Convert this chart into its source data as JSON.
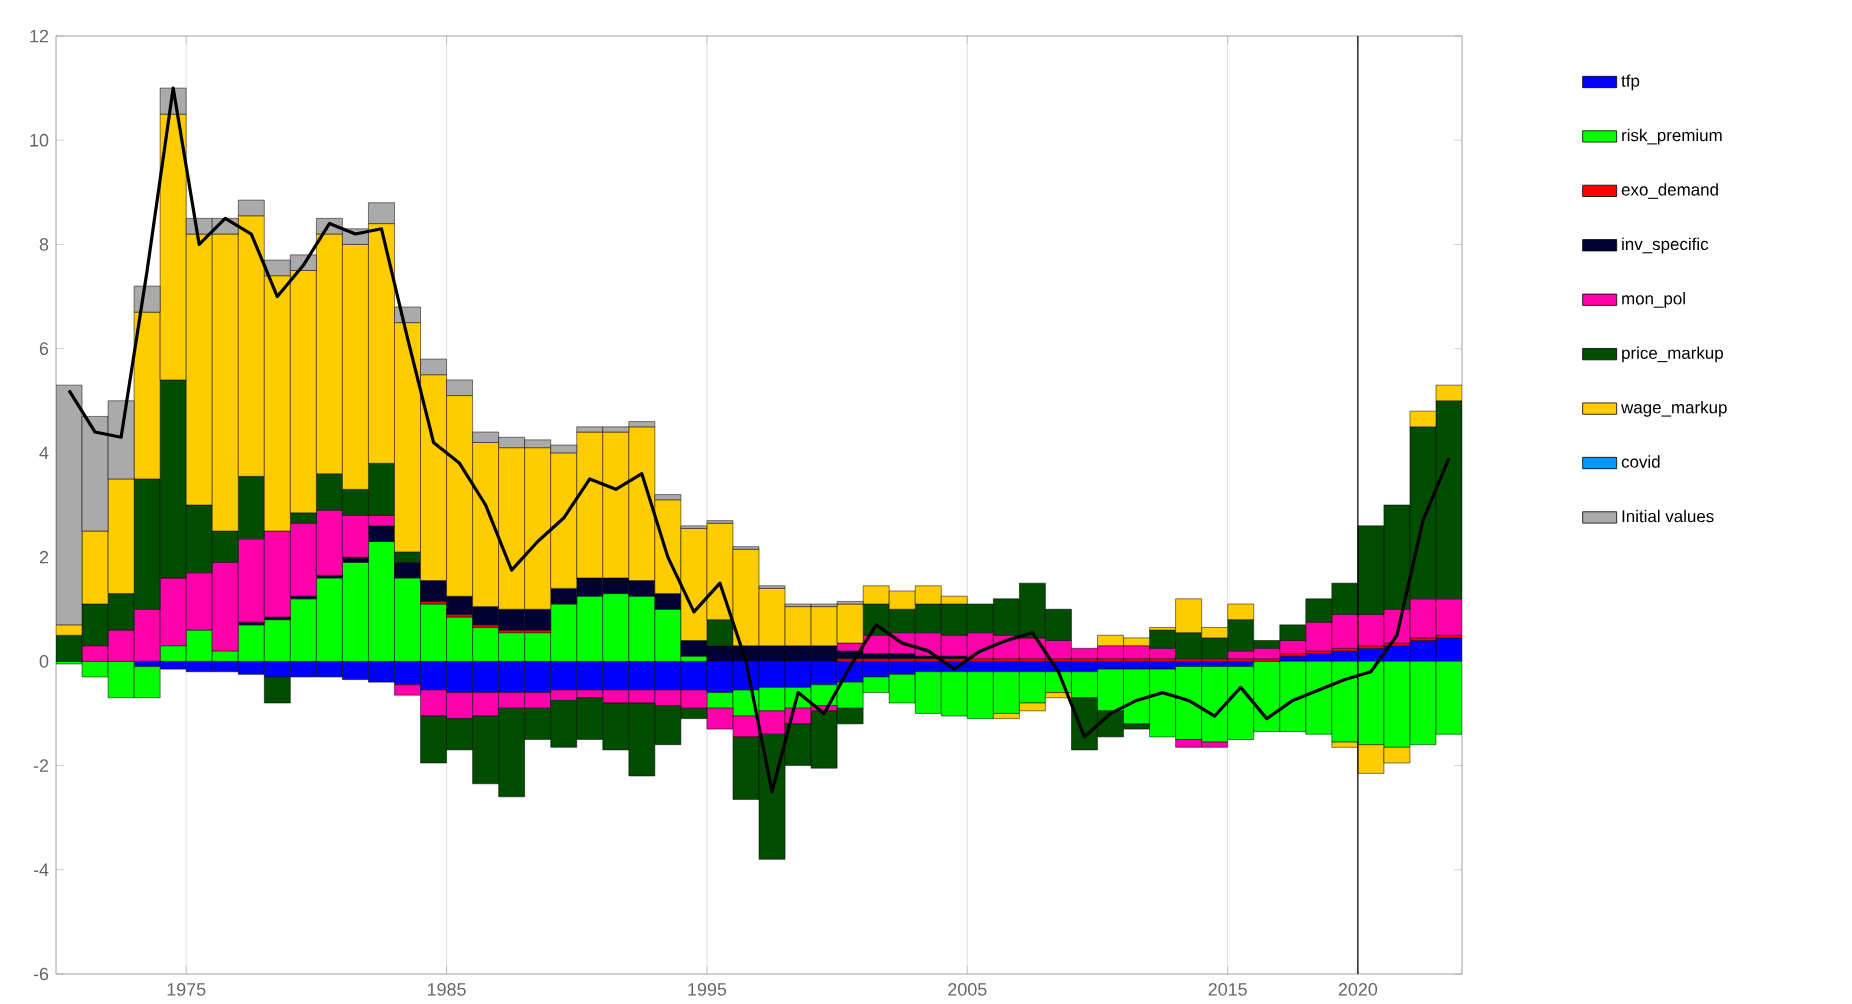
{
  "chart_data": {
    "type": "bar",
    "stacked": true,
    "x": [
      1970.5,
      1971.5,
      1972.5,
      1973.5,
      1974.5,
      1975.5,
      1976.5,
      1977.5,
      1978.5,
      1979.5,
      1980.5,
      1981.5,
      1982.5,
      1983.5,
      1984.5,
      1985.5,
      1986.5,
      1987.5,
      1988.5,
      1989.5,
      1990.5,
      1991.5,
      1992.5,
      1993.5,
      1994.5,
      1995.5,
      1996.5,
      1997.5,
      1998.5,
      1999.5,
      2000.5,
      2001.5,
      2002.5,
      2003.5,
      2004.5,
      2005.5,
      2006.5,
      2007.5,
      2008.5,
      2009.5,
      2010.5,
      2011.5,
      2012.5,
      2013.5,
      2014.5,
      2015.5,
      2016.5,
      2017.5,
      2018.5,
      2019.5,
      2020.5,
      2021.5,
      2022.5,
      2023.5
    ],
    "series": [
      {
        "name": "tfp",
        "color": "#0000ff",
        "values": [
          0,
          null,
          null,
          -0.1,
          -0.15,
          -0.2,
          -0.2,
          -0.25,
          -0.3,
          -0.3,
          -0.3,
          -0.35,
          -0.4,
          -0.45,
          -0.55,
          -0.6,
          -0.6,
          -0.6,
          -0.6,
          -0.55,
          -0.55,
          -0.55,
          -0.55,
          -0.55,
          -0.55,
          -0.6,
          -0.55,
          -0.5,
          -0.5,
          -0.45,
          -0.4,
          -0.3,
          -0.25,
          -0.2,
          -0.2,
          -0.2,
          -0.2,
          -0.2,
          -0.2,
          -0.2,
          -0.15,
          -0.15,
          -0.15,
          -0.1,
          -0.1,
          -0.1,
          null,
          0.1,
          0.15,
          0.2,
          0.25,
          0.3,
          0.4,
          0.45
        ]
      },
      {
        "name": "risk_premium",
        "color": "#00ff00",
        "values": [
          -0.05,
          -0.3,
          -0.7,
          -0.6,
          0.3,
          0.6,
          0.2,
          0.7,
          0.8,
          1.2,
          1.6,
          1.9,
          2.3,
          1.6,
          1.1,
          0.85,
          0.65,
          0.55,
          0.55,
          1.1,
          1.25,
          1.3,
          1.25,
          1.0,
          0.1,
          -0.3,
          -0.5,
          -0.45,
          -0.4,
          -0.4,
          -0.5,
          -0.3,
          -0.55,
          -0.8,
          -0.85,
          -0.9,
          -0.8,
          -0.6,
          -0.4,
          -0.5,
          -0.8,
          -1.05,
          -1.3,
          -1.4,
          -1.45,
          -1.4,
          -1.35,
          -1.35,
          -1.4,
          -1.55,
          -1.6,
          -1.65,
          -1.6,
          -1.4
        ]
      },
      {
        "name": "exo_demand",
        "color": "#ff0000",
        "values": [
          0,
          0,
          0,
          0,
          0,
          0,
          0,
          0,
          0,
          0,
          0,
          0,
          0,
          0,
          0.05,
          0.05,
          0.05,
          0.05,
          0.05,
          0,
          0,
          0,
          0,
          0,
          0,
          0,
          0,
          0,
          0,
          0,
          0.05,
          0.05,
          0.05,
          0.05,
          0.05,
          0.05,
          0.05,
          0.05,
          0.05,
          0.05,
          0.05,
          0.05,
          0.05,
          0.05,
          0.05,
          0.05,
          0.05,
          0.05,
          0.05,
          0.05,
          0.05,
          0.05,
          0.05,
          0.05
        ]
      },
      {
        "name": "inv_specific",
        "color": "#000033",
        "values": [
          0,
          0,
          0,
          0,
          0,
          0,
          0,
          0.05,
          0.05,
          0.05,
          0.05,
          0.1,
          0.3,
          0.3,
          0.4,
          0.35,
          0.35,
          0.4,
          0.4,
          0.3,
          0.35,
          0.3,
          0.3,
          0.3,
          0.3,
          0.3,
          0.3,
          0.3,
          0.3,
          0.3,
          0.15,
          0.1,
          0.1,
          0.05,
          0.05,
          0,
          0,
          0,
          0,
          0,
          0,
          0,
          0,
          0,
          0,
          0,
          0,
          0,
          0,
          0,
          0,
          0,
          0,
          0
        ]
      },
      {
        "name": "mon_pol",
        "color": "#ff00aa",
        "values": [
          0,
          0.3,
          0.6,
          1.0,
          1.3,
          1.1,
          1.7,
          1.6,
          1.65,
          1.4,
          1.25,
          0.8,
          0.2,
          -0.2,
          -0.5,
          -0.5,
          -0.45,
          -0.3,
          -0.3,
          -0.2,
          -0.15,
          -0.25,
          -0.25,
          -0.3,
          -0.35,
          -0.4,
          -0.4,
          -0.45,
          -0.3,
          -0.1,
          0.15,
          0.35,
          0.4,
          0.45,
          0.4,
          0.5,
          0.45,
          0.4,
          0.35,
          0.2,
          0.25,
          0.25,
          0.2,
          -0.15,
          -0.1,
          0.15,
          0.2,
          0.25,
          0.55,
          0.65,
          0.6,
          0.65,
          0.75,
          0.7
        ]
      },
      {
        "name": "price_markup",
        "color": "#004d00",
        "values": [
          0.5,
          0.8,
          0.7,
          2.5,
          3.8,
          1.3,
          0.6,
          1.2,
          -0.5,
          0.2,
          0.7,
          0.5,
          1.0,
          0.2,
          -0.9,
          -0.6,
          -1.3,
          -1.7,
          -0.6,
          -0.9,
          -0.8,
          -0.9,
          -1.4,
          -0.75,
          -0.2,
          0.5,
          -1.2,
          -2.4,
          -0.8,
          -1.1,
          -0.3,
          0.6,
          0.45,
          0.55,
          0.6,
          0.55,
          0.7,
          1.05,
          0.6,
          -1.0,
          -0.5,
          -0.1,
          0.35,
          0.5,
          0.4,
          0.6,
          0.15,
          0.3,
          0.45,
          0.6,
          1.7,
          2.0,
          3.3,
          3.8
        ]
      },
      {
        "name": "wage_markup",
        "color": "#ffcc00",
        "values": [
          0.2,
          1.4,
          2.2,
          3.2,
          5.1,
          5.2,
          5.7,
          5.0,
          4.9,
          4.65,
          4.6,
          4.7,
          4.6,
          4.4,
          3.95,
          3.85,
          3.15,
          3.1,
          3.1,
          2.6,
          2.8,
          2.8,
          2.95,
          1.8,
          2.15,
          1.85,
          1.85,
          1.1,
          0.75,
          0.75,
          0.75,
          0.35,
          0.35,
          0.35,
          0.15,
          0,
          -0.1,
          -0.15,
          -0.1,
          0,
          0.2,
          0.15,
          0.05,
          0.65,
          0.2,
          0.3,
          0,
          0,
          0,
          -0.1,
          -0.55,
          -0.3,
          0.3,
          0.3
        ]
      },
      {
        "name": "covid",
        "color": "#0099ff",
        "values": [
          0,
          0,
          0,
          0,
          0,
          0,
          0,
          0,
          0,
          0,
          0,
          0,
          0,
          0,
          0,
          0,
          0,
          0,
          0,
          0,
          0,
          0,
          0,
          0,
          0,
          0,
          0,
          0,
          0,
          0,
          0,
          0,
          0,
          0,
          0,
          0,
          0,
          0,
          0,
          0,
          0,
          0,
          0,
          0,
          0,
          0,
          0,
          0,
          0,
          0,
          0,
          0,
          0,
          0
        ]
      },
      {
        "name": "Initial values",
        "color": "#aaaaaa",
        "values": [
          4.6,
          2.2,
          1.5,
          0.5,
          0.5,
          0.3,
          0.3,
          0.3,
          0.3,
          0.3,
          0.3,
          0.3,
          0.4,
          0.3,
          0.3,
          0.3,
          0.2,
          0.2,
          0.15,
          0.15,
          0.1,
          0.1,
          0.1,
          0.1,
          0.05,
          0.05,
          0.05,
          0.05,
          0.05,
          0.05,
          0.05,
          0,
          0,
          0,
          0,
          0,
          0,
          0,
          0,
          0,
          0,
          0,
          0,
          0,
          0,
          0,
          0,
          0,
          0,
          0,
          0,
          0,
          0,
          0
        ]
      },
      {
        "type": "line",
        "color": "#000000",
        "values": [
          5.2,
          4.4,
          4.3,
          7.5,
          11.0,
          8.0,
          8.5,
          8.2,
          7.0,
          7.6,
          8.4,
          8.2,
          8.3,
          6.2,
          4.2,
          3.8,
          3.0,
          1.75,
          2.3,
          2.75,
          3.5,
          3.3,
          3.6,
          2.0,
          0.95,
          1.5,
          0.0,
          -2.5,
          -0.6,
          -1.0,
          -0.1,
          0.7,
          0.35,
          0.2,
          -0.15,
          0.2,
          0.4,
          0.55,
          -0.2,
          -1.45,
          -1.0,
          -0.75,
          -0.6,
          -0.75,
          -1.05,
          -0.5,
          -1.1,
          -0.75,
          -0.55,
          -0.35,
          -0.2,
          0.5,
          2.7,
          3.9
        ]
      }
    ],
    "xlim": [
      1970,
      2024
    ],
    "ylim": [
      -6,
      12
    ],
    "xticks": [
      1975,
      1985,
      1995,
      2005,
      2015,
      2020
    ],
    "yticks": [
      -6,
      -4,
      -2,
      0,
      2,
      4,
      6,
      8,
      10,
      12
    ],
    "grid": "x",
    "legend": "right",
    "ref_lines": [
      {
        "axis": "x",
        "value": 2020,
        "color": "#000000"
      }
    ]
  }
}
